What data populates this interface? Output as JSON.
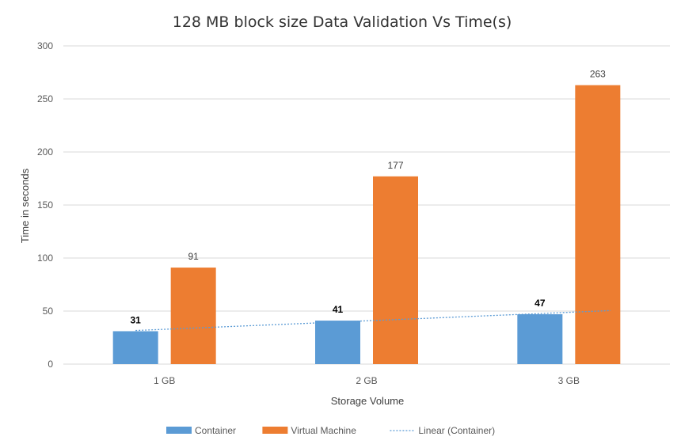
{
  "chart_data": {
    "type": "bar",
    "title": "128 MB block size Data Validation Vs Time(s)",
    "xlabel": "Storage Volume",
    "ylabel": "Time in seconds",
    "categories": [
      "1 GB",
      "2 GB",
      "3 GB"
    ],
    "ylim": [
      0,
      300
    ],
    "yticks": [
      0,
      50,
      100,
      150,
      200,
      250,
      300
    ],
    "grid": true,
    "legend_position": "bottom",
    "series": [
      {
        "name": "Container",
        "values": [
          31,
          41,
          47
        ],
        "color": "#5b9bd5",
        "label_style": "bold"
      },
      {
        "name": "Virtual Machine",
        "values": [
          91,
          177,
          263
        ],
        "color": "#ed7d31",
        "label_style": "normal"
      }
    ],
    "trendline": {
      "name": "Linear (Container)",
      "series": "Container",
      "type": "linear",
      "color": "#5b9bd5"
    }
  }
}
